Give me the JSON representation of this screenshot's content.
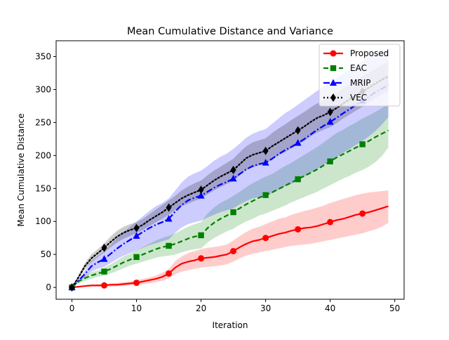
{
  "chart_data": {
    "type": "line",
    "title": "Mean Cumulative Distance and Variance",
    "xlabel": "Iteration",
    "ylabel": "Mean Cumulative Distance",
    "xlim": [
      -2.45,
      51.45
    ],
    "ylim": [
      -18,
      374
    ],
    "xticks": [
      0,
      10,
      20,
      30,
      40,
      50
    ],
    "yticks": [
      0,
      50,
      100,
      150,
      200,
      250,
      300,
      350
    ],
    "grid": false,
    "legend_position": "top-right",
    "series": [
      {
        "name": "Proposed",
        "color": "#ff0000",
        "line_style": "solid",
        "marker": "circle",
        "x": [
          0,
          1,
          2,
          3,
          4,
          5,
          6,
          7,
          8,
          9,
          10,
          11,
          12,
          13,
          14,
          15,
          16,
          17,
          18,
          19,
          20,
          21,
          22,
          23,
          24,
          25,
          26,
          27,
          28,
          29,
          30,
          31,
          32,
          33,
          34,
          35,
          36,
          37,
          38,
          39,
          40,
          41,
          42,
          43,
          44,
          45,
          46,
          47,
          48,
          49
        ],
        "mean": [
          0,
          1,
          2,
          3,
          3,
          3,
          4,
          4,
          5,
          6,
          7,
          9,
          11,
          13,
          16,
          21,
          30,
          36,
          39,
          41,
          44,
          45,
          46,
          48,
          50,
          55,
          61,
          66,
          70,
          72,
          75,
          78,
          81,
          83,
          86,
          88,
          90,
          91,
          93,
          96,
          99,
          102,
          104,
          107,
          110,
          112,
          114,
          117,
          120,
          123
        ],
        "lower": [
          0,
          0,
          1,
          1,
          1,
          1,
          1,
          2,
          2,
          3,
          4,
          5,
          6,
          8,
          10,
          14,
          20,
          24,
          26,
          28,
          30,
          31,
          32,
          33,
          35,
          39,
          44,
          48,
          51,
          53,
          55,
          57,
          59,
          61,
          63,
          64,
          65,
          66,
          68,
          70,
          72,
          74,
          76,
          78,
          80,
          82,
          85,
          88,
          92,
          98
        ],
        "upper": [
          0,
          2,
          3,
          4,
          5,
          5,
          6,
          7,
          8,
          9,
          11,
          13,
          15,
          18,
          22,
          28,
          40,
          47,
          52,
          55,
          58,
          60,
          61,
          63,
          65,
          71,
          78,
          84,
          89,
          92,
          96,
          100,
          104,
          106,
          110,
          113,
          116,
          118,
          121,
          124,
          128,
          131,
          134,
          137,
          140,
          142,
          144,
          145,
          146,
          147
        ],
        "marker_x": [
          0,
          5,
          10,
          15,
          20,
          25,
          30,
          35,
          40,
          45
        ],
        "marker_y": [
          0,
          3,
          7,
          21,
          44,
          55,
          75,
          88,
          99,
          112
        ]
      },
      {
        "name": "EAC",
        "color": "#008000",
        "line_style": "dashed",
        "marker": "square",
        "x": [
          0,
          1,
          2,
          3,
          4,
          5,
          6,
          7,
          8,
          9,
          10,
          11,
          12,
          13,
          14,
          15,
          16,
          17,
          18,
          19,
          20,
          21,
          22,
          23,
          24,
          25,
          26,
          27,
          28,
          29,
          30,
          31,
          32,
          33,
          34,
          35,
          36,
          37,
          38,
          39,
          40,
          41,
          42,
          43,
          44,
          45,
          46,
          47,
          48,
          49
        ],
        "mean": [
          0,
          9,
          14,
          18,
          21,
          24,
          28,
          33,
          38,
          42,
          46,
          50,
          54,
          58,
          61,
          63,
          66,
          70,
          74,
          77,
          79,
          90,
          98,
          104,
          109,
          114,
          120,
          126,
          131,
          136,
          140,
          144,
          149,
          154,
          159,
          164,
          169,
          174,
          179,
          185,
          191,
          197,
          202,
          207,
          212,
          217,
          222,
          228,
          233,
          238
        ],
        "lower": [
          0,
          6,
          10,
          13,
          16,
          18,
          21,
          25,
          29,
          33,
          36,
          39,
          42,
          45,
          47,
          48,
          50,
          53,
          56,
          58,
          59,
          68,
          75,
          80,
          85,
          89,
          95,
          100,
          104,
          109,
          112,
          116,
          120,
          124,
          129,
          133,
          137,
          141,
          145,
          150,
          155,
          160,
          165,
          169,
          174,
          178,
          183,
          190,
          199,
          212
        ],
        "upper": [
          0,
          12,
          18,
          23,
          26,
          30,
          35,
          41,
          47,
          51,
          56,
          61,
          66,
          71,
          75,
          78,
          82,
          87,
          92,
          96,
          99,
          112,
          121,
          128,
          133,
          139,
          145,
          152,
          158,
          163,
          168,
          172,
          178,
          184,
          189,
          195,
          201,
          207,
          213,
          220,
          227,
          234,
          239,
          245,
          250,
          256,
          261,
          266,
          272,
          278
        ],
        "marker_x": [
          0,
          5,
          10,
          15,
          20,
          25,
          30,
          35,
          40,
          45
        ],
        "marker_y": [
          0,
          24,
          46,
          63,
          79,
          114,
          140,
          164,
          191,
          217
        ]
      },
      {
        "name": "MRIP",
        "color": "#0000ff",
        "line_style": "dashdot",
        "marker": "triangle",
        "x": [
          0,
          1,
          2,
          3,
          4,
          5,
          6,
          7,
          8,
          9,
          10,
          11,
          12,
          13,
          14,
          15,
          16,
          17,
          18,
          19,
          20,
          21,
          22,
          23,
          24,
          25,
          26,
          27,
          28,
          29,
          30,
          31,
          32,
          33,
          34,
          35,
          36,
          37,
          38,
          39,
          40,
          41,
          42,
          43,
          44,
          45,
          46,
          47,
          48,
          49
        ],
        "mean": [
          0,
          10,
          20,
          32,
          38,
          43,
          51,
          59,
          66,
          72,
          78,
          84,
          90,
          95,
          99,
          104,
          115,
          125,
          132,
          136,
          139,
          145,
          151,
          156,
          160,
          165,
          172,
          179,
          184,
          187,
          189,
          195,
          202,
          208,
          213,
          219,
          225,
          232,
          239,
          245,
          251,
          257,
          264,
          270,
          277,
          283,
          289,
          296,
          301,
          307
        ],
        "lower": [
          0,
          8,
          15,
          24,
          28,
          31,
          37,
          43,
          48,
          52,
          56,
          60,
          64,
          67,
          70,
          73,
          83,
          91,
          96,
          99,
          101,
          106,
          110,
          114,
          117,
          120,
          126,
          131,
          135,
          137,
          138,
          143,
          148,
          153,
          157,
          162,
          168,
          174,
          180,
          186,
          192,
          198,
          204,
          210,
          216,
          222,
          229,
          237,
          247,
          258
        ],
        "upper": [
          0,
          12,
          25,
          40,
          48,
          55,
          65,
          75,
          84,
          92,
          100,
          108,
          116,
          123,
          128,
          135,
          147,
          159,
          168,
          173,
          177,
          184,
          192,
          198,
          203,
          210,
          218,
          227,
          233,
          237,
          240,
          248,
          256,
          264,
          270,
          277,
          284,
          291,
          298,
          305,
          311,
          318,
          324,
          331,
          337,
          343,
          349,
          355,
          357,
          360
        ],
        "marker_x": [
          0,
          5,
          10,
          15,
          20,
          25,
          30,
          35,
          40,
          45
        ],
        "marker_y": [
          0,
          43,
          78,
          104,
          139,
          165,
          189,
          219,
          251,
          283
        ]
      },
      {
        "name": "VEC",
        "color": "#000000",
        "line_style": "dotted",
        "marker": "diamond",
        "x": [
          0,
          1,
          2,
          3,
          4,
          5,
          6,
          7,
          8,
          9,
          10,
          11,
          12,
          13,
          14,
          15,
          16,
          17,
          18,
          19,
          20,
          21,
          22,
          23,
          24,
          25,
          26,
          27,
          28,
          29,
          30,
          31,
          32,
          33,
          34,
          35,
          36,
          37,
          38,
          39,
          40,
          41,
          42,
          43,
          44,
          45,
          46,
          47,
          48,
          49
        ],
        "mean": [
          0,
          15,
          32,
          44,
          52,
          60,
          69,
          77,
          83,
          87,
          90,
          95,
          102,
          108,
          114,
          121,
          128,
          135,
          140,
          144,
          148,
          155,
          162,
          168,
          173,
          178,
          187,
          196,
          201,
          204,
          207,
          214,
          220,
          226,
          232,
          238,
          244,
          251,
          257,
          261,
          266,
          272,
          279,
          285,
          291,
          297,
          303,
          309,
          315,
          320
        ],
        "lower": [
          0,
          12,
          27,
          38,
          46,
          53,
          61,
          68,
          74,
          78,
          82,
          87,
          93,
          99,
          104,
          110,
          117,
          123,
          127,
          131,
          135,
          141,
          147,
          152,
          157,
          161,
          170,
          178,
          182,
          185,
          188,
          194,
          200,
          205,
          211,
          216,
          222,
          229,
          235,
          239,
          243,
          249,
          256,
          262,
          268,
          274,
          280,
          287,
          293,
          298
        ],
        "upper": [
          0,
          18,
          37,
          50,
          58,
          67,
          77,
          86,
          92,
          96,
          99,
          104,
          111,
          118,
          125,
          132,
          139,
          147,
          153,
          158,
          162,
          170,
          177,
          183,
          189,
          195,
          205,
          214,
          220,
          223,
          226,
          234,
          241,
          247,
          254,
          260,
          266,
          273,
          279,
          284,
          289,
          295,
          302,
          308,
          314,
          320,
          326,
          331,
          337,
          342
        ],
        "marker_x": [
          0,
          5,
          10,
          15,
          20,
          25,
          30,
          35,
          40,
          45
        ],
        "marker_y": [
          0,
          60,
          90,
          121,
          148,
          178,
          207,
          238,
          266,
          297
        ]
      }
    ]
  }
}
